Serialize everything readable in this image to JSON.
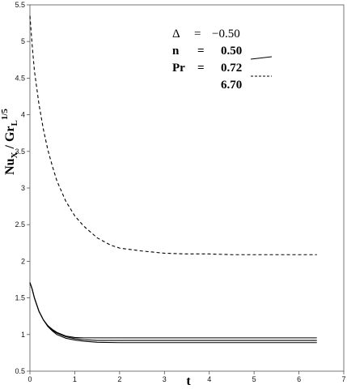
{
  "chart_data": {
    "type": "line",
    "xlabel": "t",
    "ylabel": "Nu_X / Gr_L^1/5",
    "xlim": [
      0,
      7
    ],
    "ylim": [
      0.5,
      5.5
    ],
    "x_ticks": [
      "0",
      "1",
      "2",
      "3",
      "4",
      "5",
      "6",
      "7"
    ],
    "y_ticks": [
      "0.5",
      "1",
      "1.5",
      "2",
      "2.5",
      "3",
      "3.5",
      "4",
      "4.5",
      "5",
      "5.5"
    ],
    "grid": false,
    "legend": {
      "placement": "top-right",
      "delta": {
        "symbol": "Δ",
        "eq": "=",
        "value": "−0.50"
      },
      "n": {
        "label": "n",
        "eq": "=",
        "value": "0.50"
      },
      "pr": {
        "label": "Pr",
        "eq": "=",
        "value": "0.72"
      },
      "pr2": {
        "value": "6.70"
      }
    },
    "series": [
      {
        "style": "dashed",
        "x": [
          0,
          0.05,
          0.1,
          0.2,
          0.3,
          0.4,
          0.5,
          0.6,
          0.8,
          1.0,
          1.2,
          1.5,
          1.8,
          2.0,
          2.5,
          3.0,
          3.5,
          4.0,
          4.5,
          5.0,
          5.5,
          6.0,
          6.4
        ],
        "y": [
          5.35,
          4.95,
          4.6,
          4.15,
          3.8,
          3.52,
          3.3,
          3.1,
          2.82,
          2.62,
          2.48,
          2.32,
          2.22,
          2.18,
          2.14,
          2.11,
          2.1,
          2.1,
          2.09,
          2.09,
          2.09,
          2.09,
          2.09
        ]
      },
      {
        "style": "solid",
        "x": [
          0,
          0.05,
          0.1,
          0.2,
          0.3,
          0.4,
          0.5,
          0.6,
          0.8,
          1.0,
          1.2,
          1.5,
          2.0,
          2.5,
          3.0,
          4.0,
          5.0,
          6.0,
          6.4
        ],
        "y": [
          1.71,
          1.62,
          1.5,
          1.32,
          1.2,
          1.12,
          1.07,
          1.03,
          0.98,
          0.96,
          0.955,
          0.955,
          0.955,
          0.955,
          0.955,
          0.955,
          0.955,
          0.955,
          0.955
        ]
      },
      {
        "style": "solid",
        "x": [
          0,
          0.05,
          0.1,
          0.2,
          0.3,
          0.4,
          0.5,
          0.6,
          0.8,
          1.0,
          1.2,
          1.5,
          2.0,
          2.5,
          3.0,
          4.0,
          5.0,
          6.0,
          6.4
        ],
        "y": [
          1.71,
          1.62,
          1.5,
          1.32,
          1.2,
          1.12,
          1.06,
          1.02,
          0.97,
          0.945,
          0.93,
          0.92,
          0.92,
          0.92,
          0.92,
          0.92,
          0.92,
          0.92,
          0.92
        ]
      },
      {
        "style": "solid",
        "x": [
          0,
          0.05,
          0.1,
          0.2,
          0.3,
          0.4,
          0.5,
          0.6,
          0.8,
          1.0,
          1.2,
          1.5,
          2.0,
          2.5,
          3.0,
          4.0,
          5.0,
          6.0,
          6.4
        ],
        "y": [
          1.71,
          1.62,
          1.5,
          1.32,
          1.2,
          1.11,
          1.05,
          1.0,
          0.95,
          0.925,
          0.91,
          0.895,
          0.89,
          0.89,
          0.89,
          0.89,
          0.89,
          0.89,
          0.89
        ]
      }
    ]
  }
}
